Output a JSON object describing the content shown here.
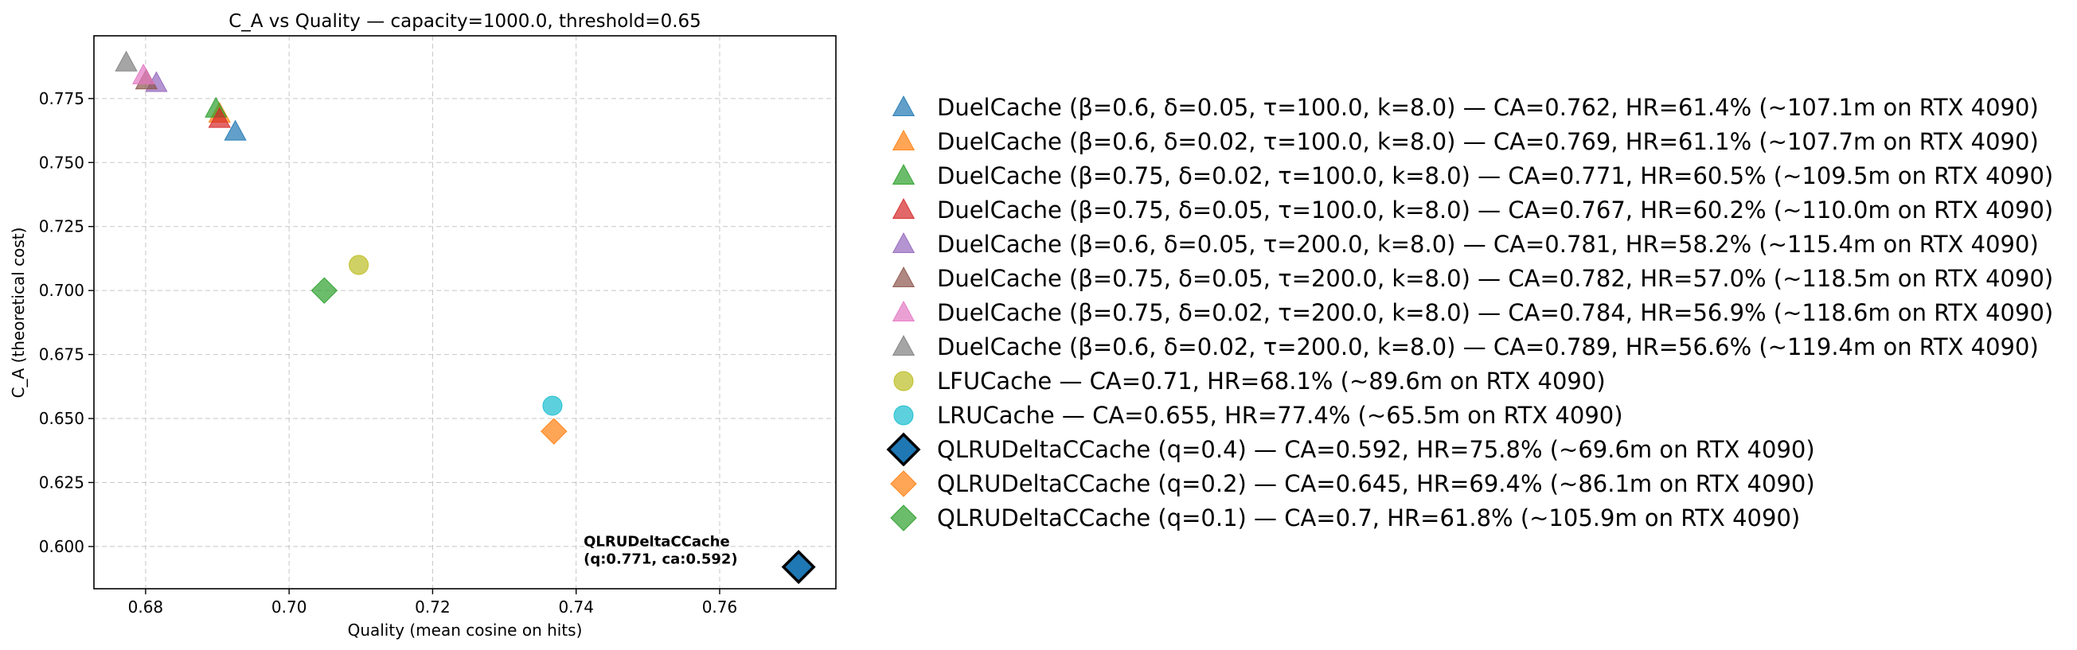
{
  "chart_data": {
    "type": "scatter",
    "title": "C_A vs Quality — capacity=1000.0, threshold=0.65",
    "xlabel": "Quality (mean cosine on hits)",
    "ylabel": "C_A (theoretical cost)",
    "xlim": [
      0.6728,
      0.7762
    ],
    "ylim": [
      0.5835,
      0.7995
    ],
    "xticks": [
      0.68,
      0.7,
      0.72,
      0.74,
      0.76
    ],
    "xtick_labels": [
      "0.68",
      "0.70",
      "0.72",
      "0.74",
      "0.76"
    ],
    "yticks": [
      0.6,
      0.625,
      0.65,
      0.675,
      0.7,
      0.725,
      0.75,
      0.775
    ],
    "ytick_labels": [
      "0.600",
      "0.625",
      "0.650",
      "0.675",
      "0.700",
      "0.725",
      "0.750",
      "0.775"
    ],
    "grid": true,
    "legend_position": "outside-right",
    "series": [
      {
        "name": "DuelCache (β=0.6, δ=0.05, τ=100.0, k=8.0) — CA=0.762, HR=61.4% (~107.1m on RTX 4090)",
        "marker": "triangle",
        "color": "#1f77b4",
        "x": 0.6925,
        "y": 0.762
      },
      {
        "name": "DuelCache (β=0.6, δ=0.02, τ=100.0, k=8.0) — CA=0.769, HR=61.1% (~107.7m on RTX 4090)",
        "marker": "triangle",
        "color": "#ff7f0e",
        "x": 0.6903,
        "y": 0.769
      },
      {
        "name": "DuelCache (β=0.75, δ=0.02, τ=100.0, k=8.0) — CA=0.771, HR=60.5% (~109.5m on RTX 4090)",
        "marker": "triangle",
        "color": "#2ca02c",
        "x": 0.6898,
        "y": 0.771
      },
      {
        "name": "DuelCache (β=0.75, δ=0.05, τ=100.0, k=8.0) — CA=0.767, HR=60.2% (~110.0m on RTX 4090)",
        "marker": "triangle",
        "color": "#d62728",
        "x": 0.6903,
        "y": 0.767
      },
      {
        "name": "DuelCache (β=0.6, δ=0.05, τ=200.0, k=8.0) — CA=0.781, HR=58.2% (~115.4m on RTX 4090)",
        "marker": "triangle",
        "color": "#9467bd",
        "x": 0.6815,
        "y": 0.781
      },
      {
        "name": "DuelCache (β=0.75, δ=0.05, τ=200.0, k=8.0) — CA=0.782, HR=57.0% (~118.5m on RTX 4090)",
        "marker": "triangle",
        "color": "#8c564b",
        "x": 0.6801,
        "y": 0.782
      },
      {
        "name": "DuelCache (β=0.75, δ=0.02, τ=200.0, k=8.0) — CA=0.784, HR=56.9% (~118.6m on RTX 4090)",
        "marker": "triangle",
        "color": "#e377c2",
        "x": 0.6797,
        "y": 0.784
      },
      {
        "name": "DuelCache (β=0.6, δ=0.02, τ=200.0, k=8.0) — CA=0.789, HR=56.6% (~119.4m on RTX 4090)",
        "marker": "triangle",
        "color": "#7f7f7f",
        "x": 0.6773,
        "y": 0.789
      },
      {
        "name": "LFUCache — CA=0.71, HR=68.1% (~89.6m on RTX 4090)",
        "marker": "circle",
        "color": "#bcbd22",
        "x": 0.7097,
        "y": 0.71
      },
      {
        "name": "LRUCache — CA=0.655, HR=77.4% (~65.5m on RTX 4090)",
        "marker": "circle",
        "color": "#17becf",
        "x": 0.7367,
        "y": 0.655
      },
      {
        "name": "QLRUDeltaCCache (q=0.4) — CA=0.592, HR=75.8% (~69.6m on RTX 4090)",
        "marker": "diamond-outlined",
        "color": "#1f77b4",
        "x": 0.771,
        "y": 0.592
      },
      {
        "name": "QLRUDeltaCCache (q=0.2) — CA=0.645, HR=69.4% (~86.1m on RTX 4090)",
        "marker": "diamond",
        "color": "#ff7f0e",
        "x": 0.7369,
        "y": 0.645
      },
      {
        "name": "QLRUDeltaCCache (q=0.1) — CA=0.7, HR=61.8% (~105.9m on RTX 4090)",
        "marker": "diamond",
        "color": "#2ca02c",
        "x": 0.7049,
        "y": 0.7
      }
    ],
    "annotations": [
      {
        "lines": [
          "QLRUDeltaCCache",
          "(q:0.771, ca:0.592)"
        ],
        "x": 0.771,
        "y": 0.592
      }
    ]
  }
}
